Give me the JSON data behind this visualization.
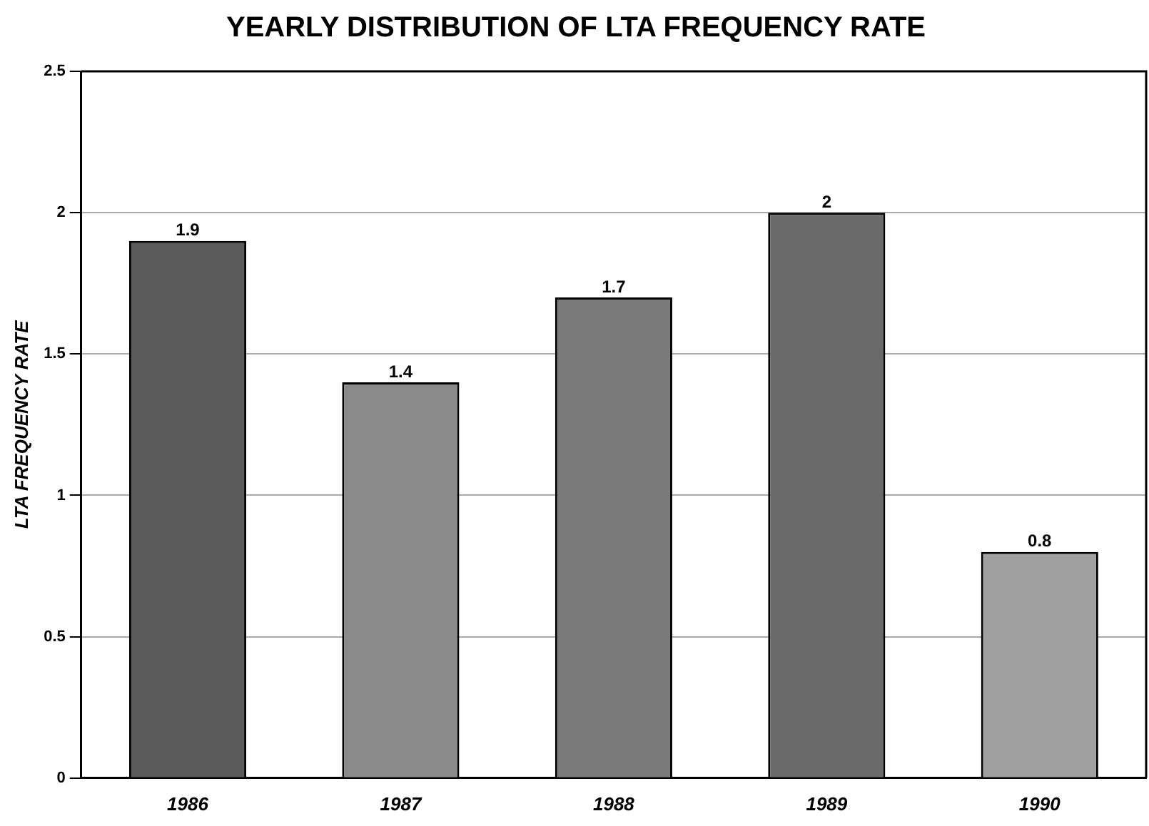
{
  "chart_data": {
    "type": "bar",
    "title": "YEARLY DISTRIBUTION OF LTA FREQUENCY RATE",
    "ylabel": "LTA FREQUENCY RATE",
    "categories": [
      "1986",
      "1987",
      "1988",
      "1989",
      "1990"
    ],
    "values": [
      1.9,
      1.4,
      1.7,
      2,
      0.8
    ],
    "colors": [
      "#5a5a5a",
      "#8a8a8a",
      "#7a7a7a",
      "#6a6a6a",
      "#a0a0a0"
    ],
    "ylim": [
      0,
      2.5
    ],
    "yticks": [
      0,
      0.5,
      1,
      1.5,
      2,
      2.5
    ],
    "grid": "y",
    "data_labels": true,
    "legend": false
  }
}
